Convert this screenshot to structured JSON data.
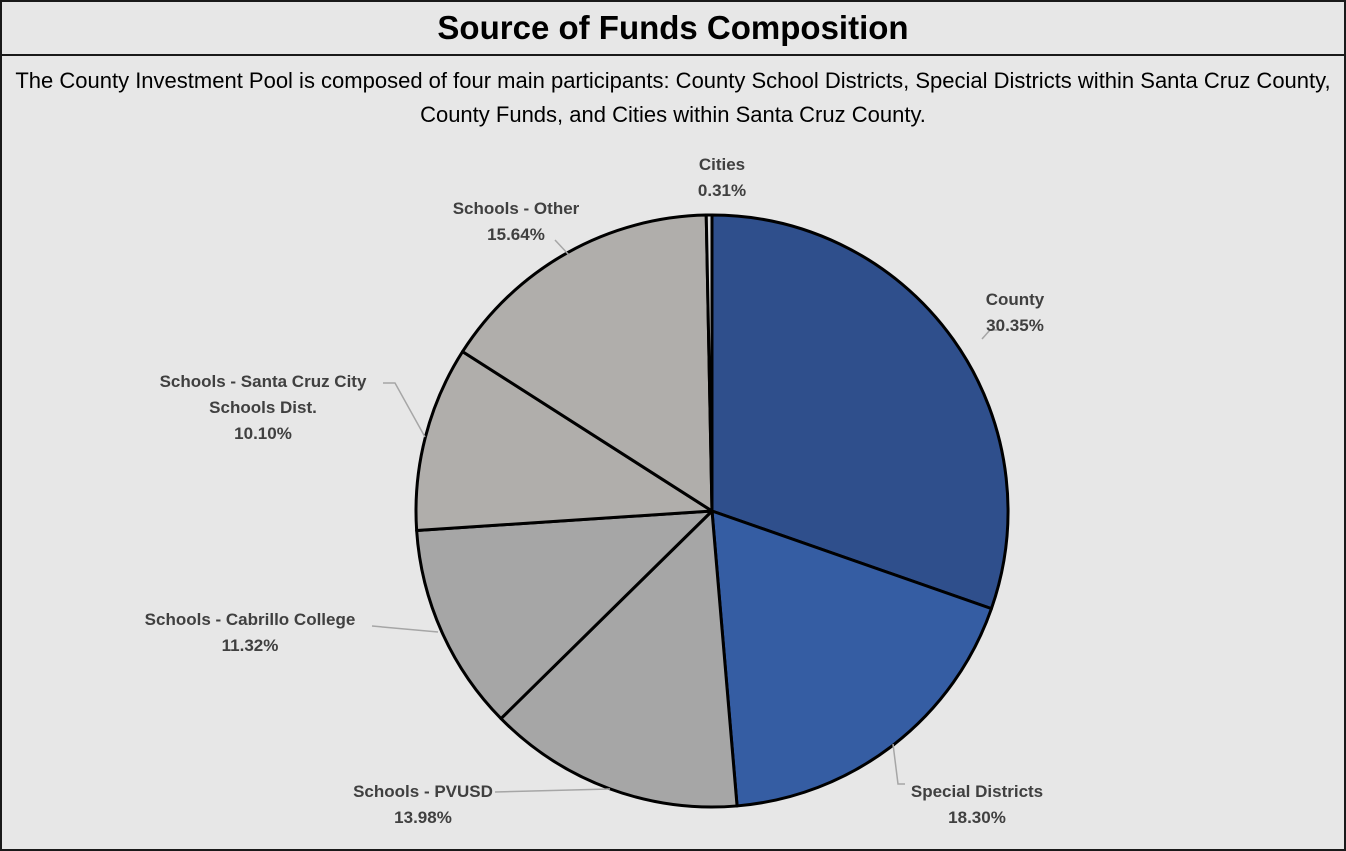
{
  "header": {
    "title": "Source of Funds Composition",
    "description": "The County Investment Pool is composed of four main participants: County School Districts, Special Districts within Santa Cruz County, County Funds, and Cities within Santa Cruz County."
  },
  "chart_data": {
    "type": "pie",
    "title": "",
    "start": "12 o'clock, clockwise",
    "slices": [
      {
        "label": "County",
        "value": 30.35,
        "display": "30.35%",
        "color": "#2f4f8c"
      },
      {
        "label": "Special Districts",
        "value": 18.3,
        "display": "18.30%",
        "color": "#355da3"
      },
      {
        "label": "Schools - PVUSD",
        "value": 13.98,
        "display": "13.98%",
        "color": "#a6a6a6"
      },
      {
        "label": "Schools - Cabrillo College",
        "value": 11.32,
        "display": "11.32%",
        "color": "#a6a6a6"
      },
      {
        "label": "Schools - Santa Cruz City Schools Dist.",
        "value": 10.1,
        "display": "10.10%",
        "color": "#b0aeab"
      },
      {
        "label": "Schools - Other",
        "value": 15.64,
        "display": "15.64%",
        "color": "#b0aeab"
      },
      {
        "label": "Cities",
        "value": 0.31,
        "display": "0.31%",
        "color": "#d9d9d9"
      }
    ]
  }
}
